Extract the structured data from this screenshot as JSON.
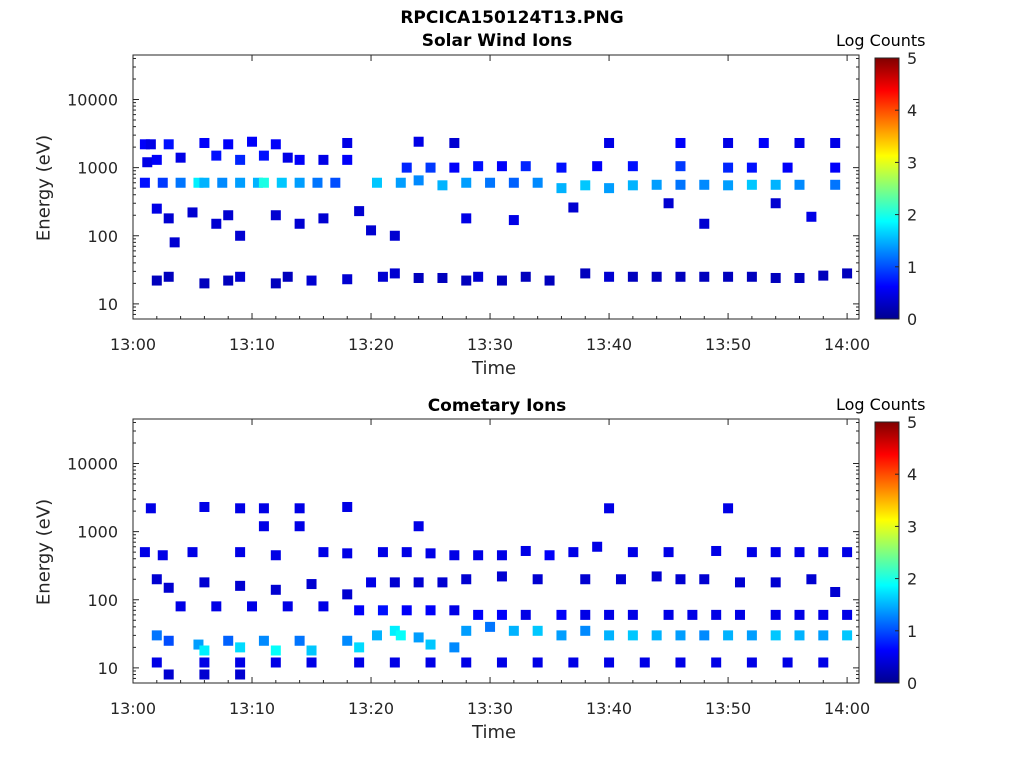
{
  "figure_title": "RPCICA150124T13.PNG",
  "colorbar": {
    "label": "Log Counts",
    "ticks": [
      "0",
      "1",
      "2",
      "3",
      "4",
      "5"
    ],
    "range": [
      0,
      5
    ],
    "colormap": "jet"
  },
  "chart_data": [
    {
      "type": "heatmap",
      "title": "Solar Wind Ions",
      "xlabel": "Time",
      "ylabel": "Energy (eV)",
      "xticks": [
        "13:00",
        "13:10",
        "13:20",
        "13:30",
        "13:40",
        "13:50",
        "14:00"
      ],
      "yticks": [
        "10",
        "100",
        "1000",
        "10000"
      ],
      "xlim_minutes": [
        0,
        61
      ],
      "ylim_eV": [
        6,
        45000
      ],
      "yscale": "log",
      "grid": false,
      "cells": [
        [
          1,
          2200,
          0.6
        ],
        [
          1.2,
          1200,
          0.5
        ],
        [
          1.5,
          2200,
          0.5
        ],
        [
          2,
          1300,
          0.6
        ],
        [
          3,
          2200,
          0.7
        ],
        [
          4,
          1400,
          0.5
        ],
        [
          6,
          2300,
          0.6
        ],
        [
          7,
          1500,
          0.7
        ],
        [
          8,
          2200,
          0.6
        ],
        [
          9,
          1300,
          0.8
        ],
        [
          10,
          2400,
          0.6
        ],
        [
          11,
          1500,
          0.7
        ],
        [
          12,
          2200,
          0.6
        ],
        [
          13,
          1400,
          0.5
        ],
        [
          14,
          1300,
          0.6
        ],
        [
          16,
          1300,
          0.5
        ],
        [
          18,
          2300,
          0.5
        ],
        [
          18,
          1300,
          0.6
        ],
        [
          1,
          600,
          0.7
        ],
        [
          2.5,
          600,
          0.9
        ],
        [
          4,
          600,
          1.2
        ],
        [
          5.5,
          600,
          1.8
        ],
        [
          6,
          600,
          1.5
        ],
        [
          7.5,
          600,
          1.3
        ],
        [
          9,
          600,
          1.4
        ],
        [
          10.5,
          600,
          1.5
        ],
        [
          11,
          600,
          2.0
        ],
        [
          12.5,
          600,
          1.6
        ],
        [
          14,
          600,
          1.4
        ],
        [
          15.5,
          600,
          1.2
        ],
        [
          17,
          600,
          1.0
        ],
        [
          2,
          250,
          0.5
        ],
        [
          3,
          180,
          0.4
        ],
        [
          5,
          220,
          0.4
        ],
        [
          7,
          150,
          0.4
        ],
        [
          8,
          200,
          0.4
        ],
        [
          9,
          100,
          0.4
        ],
        [
          12,
          200,
          0.4
        ],
        [
          14,
          150,
          0.4
        ],
        [
          16,
          180,
          0.4
        ],
        [
          19,
          230,
          0.4
        ],
        [
          20,
          120,
          0.4
        ],
        [
          3.5,
          80,
          0.4
        ],
        [
          20.5,
          600,
          1.6
        ],
        [
          22.5,
          600,
          1.4
        ],
        [
          24,
          650,
          1.3
        ],
        [
          26,
          550,
          1.5
        ],
        [
          28,
          600,
          1.4
        ],
        [
          30,
          600,
          1.2
        ],
        [
          32,
          600,
          1.1
        ],
        [
          34,
          600,
          1.3
        ],
        [
          36,
          500,
          1.5
        ],
        [
          38,
          550,
          1.6
        ],
        [
          40,
          500,
          1.4
        ],
        [
          42,
          550,
          1.5
        ],
        [
          44,
          560,
          1.4
        ],
        [
          46,
          560,
          1.2
        ],
        [
          48,
          560,
          1.3
        ],
        [
          50,
          550,
          1.4
        ],
        [
          52,
          560,
          1.6
        ],
        [
          54,
          560,
          1.5
        ],
        [
          56,
          560,
          1.3
        ],
        [
          59,
          560,
          1.2
        ],
        [
          23,
          1000,
          0.8
        ],
        [
          25,
          1000,
          0.9
        ],
        [
          27,
          1000,
          0.6
        ],
        [
          29,
          1050,
          0.7
        ],
        [
          31,
          1050,
          0.6
        ],
        [
          33,
          1050,
          0.8
        ],
        [
          36,
          1000,
          0.7
        ],
        [
          39,
          1050,
          0.6
        ],
        [
          42,
          1050,
          0.7
        ],
        [
          46,
          1050,
          0.9
        ],
        [
          50,
          1000,
          0.8
        ],
        [
          52,
          1000,
          0.7
        ],
        [
          55,
          1000,
          0.6
        ],
        [
          59,
          1000,
          0.6
        ],
        [
          24,
          2400,
          0.5
        ],
        [
          27,
          2300,
          0.4
        ],
        [
          40,
          2300,
          0.5
        ],
        [
          46,
          2300,
          0.6
        ],
        [
          50,
          2300,
          0.5
        ],
        [
          53,
          2300,
          0.6
        ],
        [
          56,
          2300,
          0.5
        ],
        [
          59,
          2300,
          0.5
        ],
        [
          28,
          180,
          0.5
        ],
        [
          32,
          170,
          0.5
        ],
        [
          37,
          260,
          0.4
        ],
        [
          45,
          300,
          0.4
        ],
        [
          48,
          150,
          0.4
        ],
        [
          54,
          300,
          0.4
        ],
        [
          57,
          190,
          0.5
        ],
        [
          22,
          100,
          0.4
        ],
        [
          2,
          22,
          0.3
        ],
        [
          3,
          25,
          0.3
        ],
        [
          6,
          20,
          0.3
        ],
        [
          8,
          22,
          0.3
        ],
        [
          9,
          25,
          0.4
        ],
        [
          12,
          20,
          0.3
        ],
        [
          13,
          25,
          0.3
        ],
        [
          15,
          22,
          0.4
        ],
        [
          18,
          23,
          0.4
        ],
        [
          21,
          25,
          0.4
        ],
        [
          22,
          28,
          0.4
        ],
        [
          24,
          24,
          0.3
        ],
        [
          26,
          24,
          0.3
        ],
        [
          28,
          22,
          0.3
        ],
        [
          29,
          25,
          0.4
        ],
        [
          31,
          22,
          0.3
        ],
        [
          33,
          25,
          0.3
        ],
        [
          35,
          22,
          0.3
        ],
        [
          38,
          28,
          0.3
        ],
        [
          40,
          25,
          0.4
        ],
        [
          42,
          25,
          0.3
        ],
        [
          44,
          25,
          0.3
        ],
        [
          46,
          25,
          0.3
        ],
        [
          48,
          25,
          0.3
        ],
        [
          50,
          25,
          0.3
        ],
        [
          52,
          25,
          0.3
        ],
        [
          54,
          24,
          0.3
        ],
        [
          56,
          24,
          0.3
        ],
        [
          58,
          26,
          0.3
        ],
        [
          60,
          28,
          0.3
        ]
      ]
    },
    {
      "type": "heatmap",
      "title": "Cometary Ions",
      "xlabel": "Time",
      "ylabel": "Energy (eV)",
      "xticks": [
        "13:00",
        "13:10",
        "13:20",
        "13:30",
        "13:40",
        "13:50",
        "14:00"
      ],
      "yticks": [
        "10",
        "100",
        "1000",
        "10000"
      ],
      "xlim_minutes": [
        0,
        61
      ],
      "ylim_eV": [
        6,
        45000
      ],
      "yscale": "log",
      "grid": false,
      "cells": [
        [
          1.5,
          2200,
          0.5
        ],
        [
          6,
          2300,
          0.5
        ],
        [
          9,
          2200,
          0.5
        ],
        [
          11,
          2200,
          0.5
        ],
        [
          14,
          2200,
          0.5
        ],
        [
          18,
          2300,
          0.5
        ],
        [
          40,
          2200,
          0.5
        ],
        [
          50,
          2200,
          0.5
        ],
        [
          24,
          1200,
          0.5
        ],
        [
          11,
          1200,
          0.5
        ],
        [
          14,
          1200,
          0.5
        ],
        [
          1,
          500,
          0.5
        ],
        [
          2.5,
          450,
          0.5
        ],
        [
          5,
          500,
          0.5
        ],
        [
          9,
          500,
          0.5
        ],
        [
          12,
          450,
          0.5
        ],
        [
          16,
          500,
          0.5
        ],
        [
          18,
          480,
          0.5
        ],
        [
          21,
          500,
          0.5
        ],
        [
          23,
          500,
          0.5
        ],
        [
          25,
          480,
          0.5
        ],
        [
          27,
          450,
          0.5
        ],
        [
          29,
          450,
          0.5
        ],
        [
          31,
          450,
          0.5
        ],
        [
          33,
          520,
          0.5
        ],
        [
          35,
          450,
          0.6
        ],
        [
          37,
          500,
          0.5
        ],
        [
          39,
          600,
          0.5
        ],
        [
          42,
          500,
          0.5
        ],
        [
          45,
          500,
          0.5
        ],
        [
          49,
          520,
          0.5
        ],
        [
          52,
          500,
          0.5
        ],
        [
          54,
          500,
          0.5
        ],
        [
          56,
          500,
          0.5
        ],
        [
          58,
          500,
          0.5
        ],
        [
          60,
          500,
          0.5
        ],
        [
          2,
          200,
          0.4
        ],
        [
          3,
          150,
          0.4
        ],
        [
          6,
          180,
          0.4
        ],
        [
          9,
          160,
          0.4
        ],
        [
          12,
          140,
          0.4
        ],
        [
          15,
          170,
          0.4
        ],
        [
          18,
          120,
          0.4
        ],
        [
          20,
          180,
          0.5
        ],
        [
          22,
          180,
          0.4
        ],
        [
          24,
          180,
          0.4
        ],
        [
          26,
          180,
          0.4
        ],
        [
          28,
          200,
          0.4
        ],
        [
          31,
          220,
          0.4
        ],
        [
          34,
          200,
          0.4
        ],
        [
          38,
          200,
          0.4
        ],
        [
          41,
          200,
          0.4
        ],
        [
          44,
          220,
          0.4
        ],
        [
          46,
          200,
          0.4
        ],
        [
          48,
          200,
          0.4
        ],
        [
          51,
          180,
          0.4
        ],
        [
          54,
          180,
          0.4
        ],
        [
          57,
          200,
          0.4
        ],
        [
          59,
          130,
          0.4
        ],
        [
          4,
          80,
          0.5
        ],
        [
          7,
          80,
          0.5
        ],
        [
          10,
          80,
          0.5
        ],
        [
          13,
          80,
          0.5
        ],
        [
          16,
          80,
          0.5
        ],
        [
          19,
          70,
          0.6
        ],
        [
          21,
          70,
          0.7
        ],
        [
          23,
          70,
          0.6
        ],
        [
          25,
          70,
          0.6
        ],
        [
          27,
          70,
          0.5
        ],
        [
          29,
          60,
          0.6
        ],
        [
          31,
          60,
          0.6
        ],
        [
          33,
          60,
          0.5
        ],
        [
          36,
          60,
          0.6
        ],
        [
          38,
          60,
          0.5
        ],
        [
          40,
          60,
          0.5
        ],
        [
          42,
          60,
          0.5
        ],
        [
          45,
          60,
          0.5
        ],
        [
          47,
          60,
          0.5
        ],
        [
          49,
          60,
          0.5
        ],
        [
          51,
          60,
          0.5
        ],
        [
          54,
          60,
          0.5
        ],
        [
          56,
          60,
          0.5
        ],
        [
          58,
          60,
          0.5
        ],
        [
          60,
          60,
          0.5
        ],
        [
          2,
          30,
          1.2
        ],
        [
          3,
          25,
          1.0
        ],
        [
          5.5,
          22,
          1.4
        ],
        [
          6,
          18,
          1.8
        ],
        [
          8,
          25,
          1.1
        ],
        [
          9,
          20,
          1.7
        ],
        [
          11,
          25,
          1.3
        ],
        [
          12,
          18,
          1.9
        ],
        [
          14,
          25,
          1.2
        ],
        [
          15,
          18,
          1.6
        ],
        [
          18,
          25,
          1.3
        ],
        [
          19,
          20,
          1.7
        ],
        [
          20.5,
          30,
          1.5
        ],
        [
          22,
          35,
          1.8
        ],
        [
          22.5,
          30,
          1.9
        ],
        [
          24,
          28,
          1.4
        ],
        [
          25,
          22,
          1.6
        ],
        [
          27,
          20,
          1.3
        ],
        [
          28,
          35,
          1.4
        ],
        [
          30,
          40,
          1.2
        ],
        [
          32,
          35,
          1.5
        ],
        [
          34,
          35,
          1.6
        ],
        [
          36,
          30,
          1.4
        ],
        [
          38,
          35,
          1.3
        ],
        [
          40,
          30,
          1.5
        ],
        [
          42,
          30,
          1.6
        ],
        [
          44,
          30,
          1.5
        ],
        [
          46,
          30,
          1.4
        ],
        [
          48,
          30,
          1.3
        ],
        [
          50,
          30,
          1.5
        ],
        [
          52,
          30,
          1.4
        ],
        [
          54,
          30,
          1.6
        ],
        [
          56,
          30,
          1.5
        ],
        [
          58,
          30,
          1.4
        ],
        [
          60,
          30,
          1.6
        ],
        [
          2,
          12,
          0.5
        ],
        [
          6,
          12,
          0.5
        ],
        [
          9,
          12,
          0.5
        ],
        [
          12,
          12,
          0.5
        ],
        [
          15,
          12,
          0.5
        ],
        [
          19,
          12,
          0.5
        ],
        [
          22,
          12,
          0.5
        ],
        [
          25,
          12,
          0.5
        ],
        [
          28,
          12,
          0.5
        ],
        [
          31,
          12,
          0.5
        ],
        [
          34,
          12,
          0.5
        ],
        [
          37,
          12,
          0.5
        ],
        [
          40,
          12,
          0.5
        ],
        [
          43,
          12,
          0.5
        ],
        [
          46,
          12,
          0.5
        ],
        [
          49,
          12,
          0.5
        ],
        [
          52,
          12,
          0.5
        ],
        [
          55,
          12,
          0.5
        ],
        [
          58,
          12,
          0.5
        ],
        [
          3,
          8,
          0.4
        ],
        [
          6,
          8,
          0.4
        ],
        [
          9,
          8,
          0.4
        ]
      ]
    }
  ]
}
